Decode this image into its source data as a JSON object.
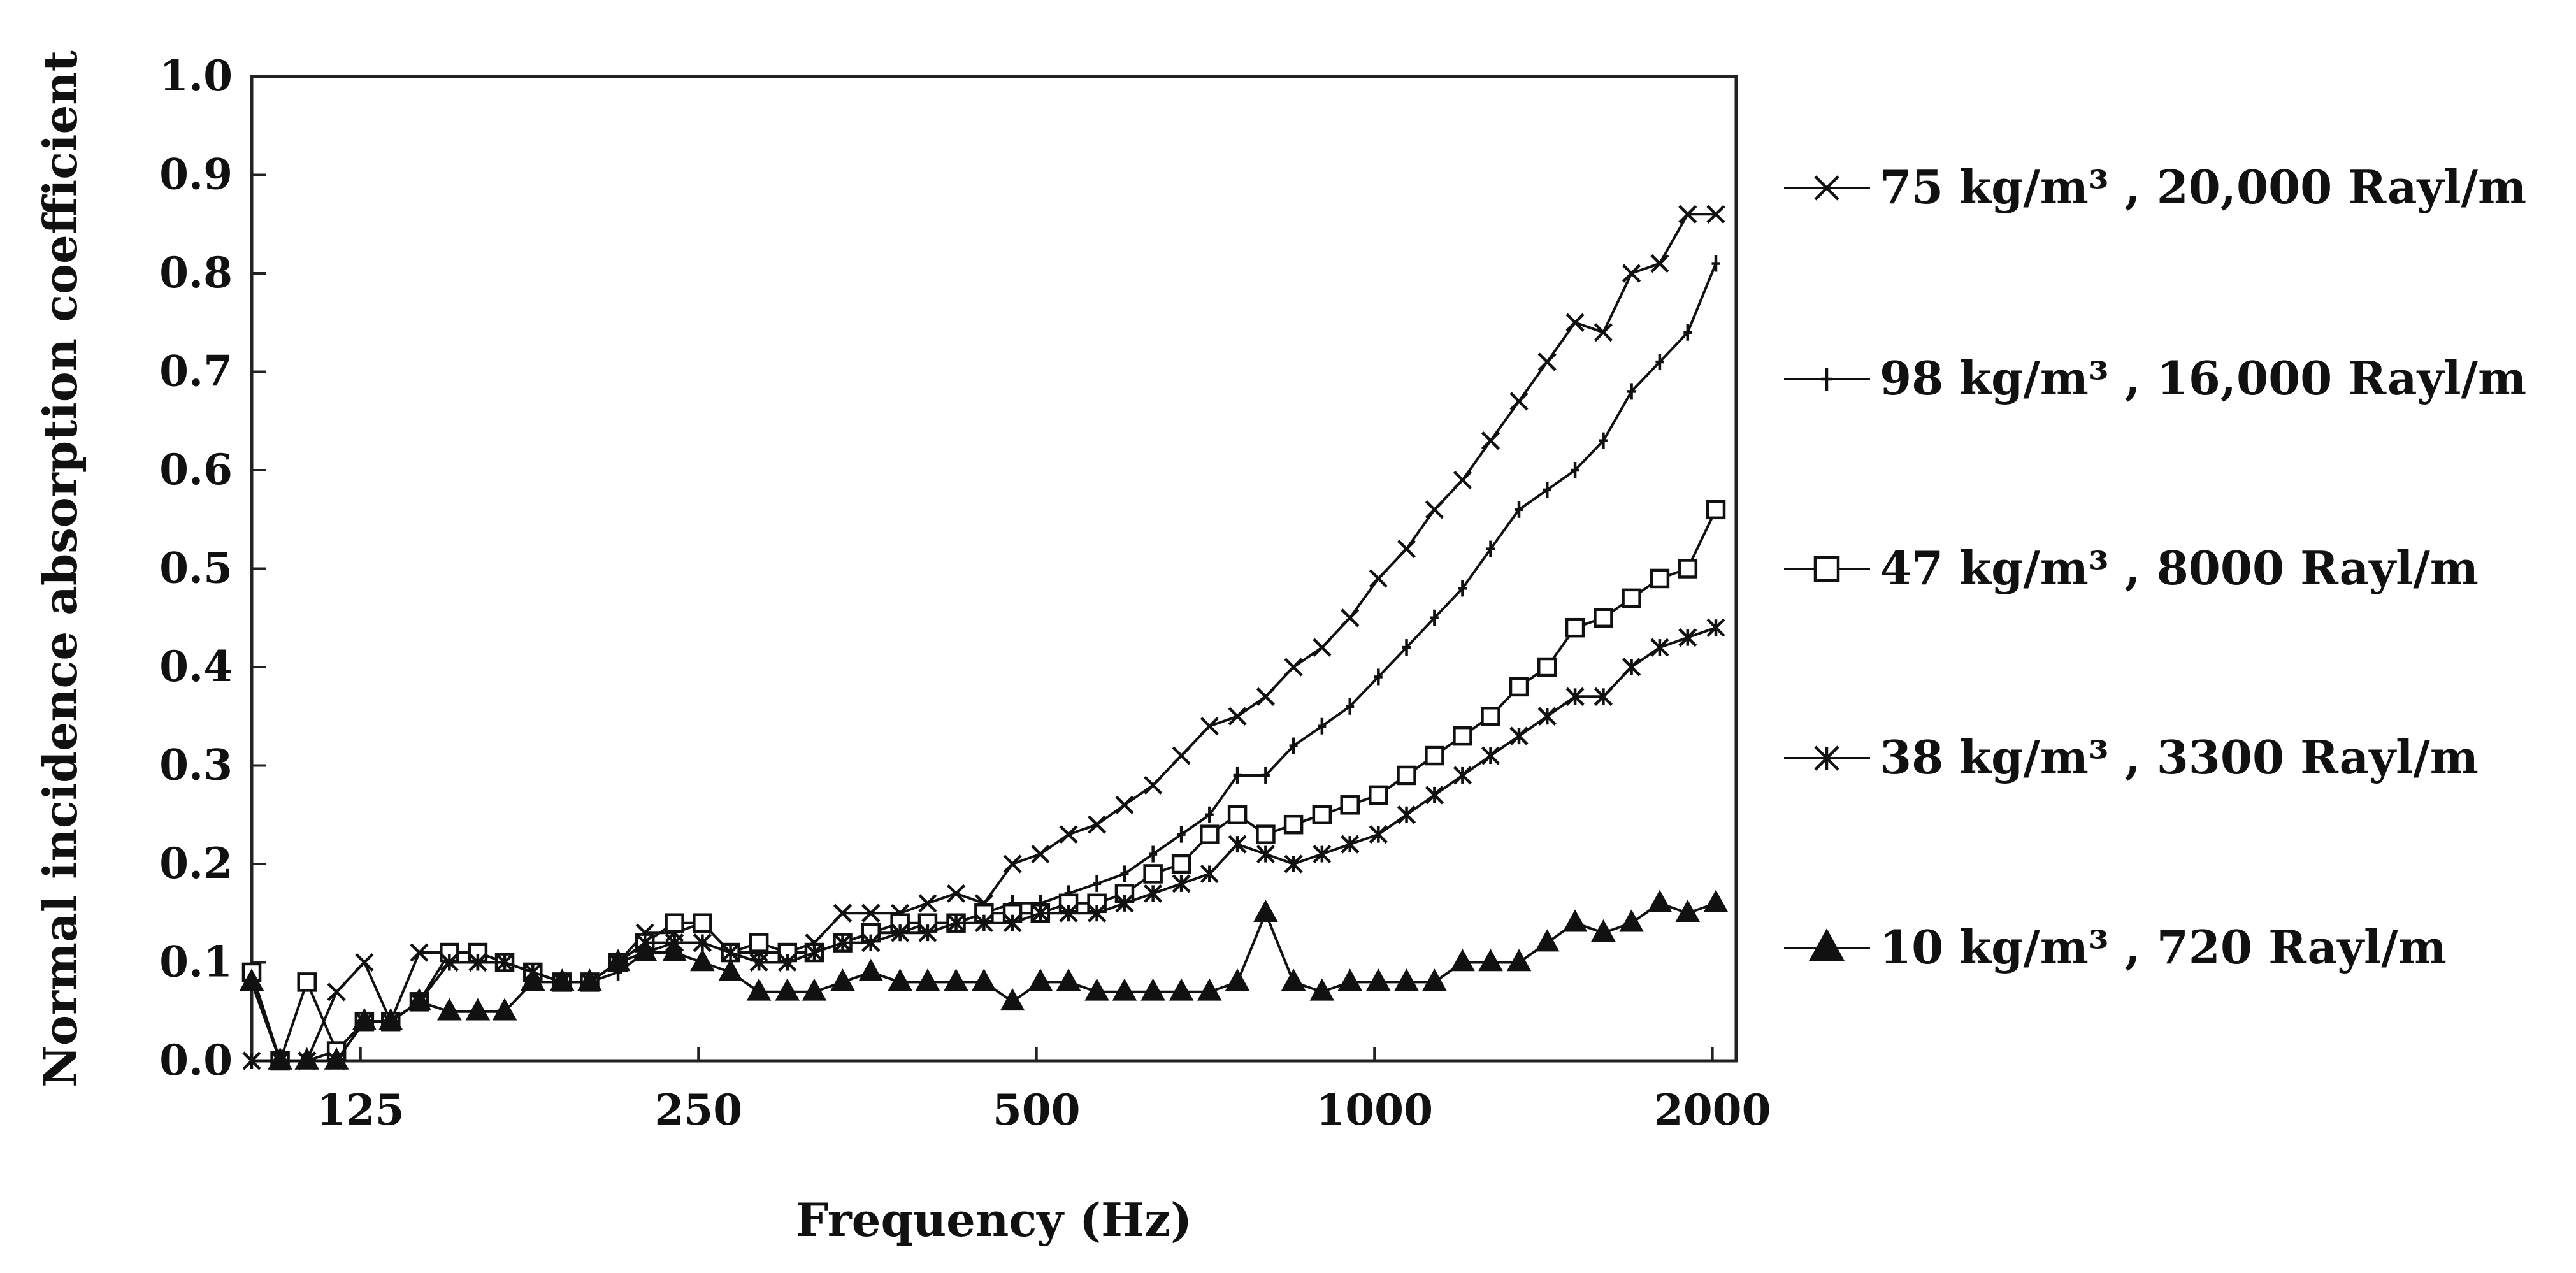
{
  "chart_data": {
    "type": "line",
    "title": "",
    "xlabel": "Frequency (Hz)",
    "ylabel": "Normal incidence absorption coefficient",
    "x_scale": "log",
    "xlim": [
      100,
      2100
    ],
    "ylim": [
      0,
      1.0
    ],
    "x_ticks": [
      125,
      250,
      500,
      1000,
      2000
    ],
    "y_ticks": [
      "0.0",
      "0.1",
      "0.2",
      "0.3",
      "0.4",
      "0.5",
      "0.6",
      "0.7",
      "0.8",
      "0.9",
      "1.0"
    ],
    "grid": false,
    "legend_position": "right",
    "x": [
      100,
      106,
      112,
      119,
      126,
      133,
      141,
      150,
      159,
      168,
      178,
      189,
      200,
      212,
      224,
      238,
      252,
      267,
      283,
      300,
      317,
      336,
      356,
      378,
      400,
      424,
      449,
      476,
      504,
      534,
      566,
      599,
      635,
      673,
      713,
      755,
      800,
      847,
      898,
      951,
      1008,
      1068,
      1131,
      1198,
      1269,
      1345,
      1425,
      1509,
      1599,
      1694,
      1795,
      1901,
      2014
    ],
    "series": [
      {
        "name": "75 kg/m³ , 20,000 Rayl/m",
        "marker": "x",
        "color": "#111111",
        "values": [
          0.08,
          0.0,
          0.0,
          0.07,
          0.1,
          0.04,
          0.11,
          0.11,
          0.11,
          0.1,
          0.09,
          0.08,
          0.08,
          0.1,
          0.13,
          0.13,
          0.14,
          0.11,
          0.11,
          0.11,
          0.12,
          0.15,
          0.15,
          0.15,
          0.16,
          0.17,
          0.16,
          0.2,
          0.21,
          0.23,
          0.24,
          0.26,
          0.28,
          0.31,
          0.34,
          0.35,
          0.37,
          0.4,
          0.42,
          0.45,
          0.49,
          0.52,
          0.56,
          0.59,
          0.63,
          0.67,
          0.71,
          0.75,
          0.74,
          0.8,
          0.81,
          0.86,
          0.86
        ]
      },
      {
        "name": "98 kg/m³ , 16,000 Rayl/m",
        "marker": "plus",
        "color": "#111111",
        "values": [
          0.08,
          0.0,
          0.0,
          0.01,
          0.04,
          0.04,
          0.06,
          0.1,
          0.1,
          0.1,
          0.09,
          0.08,
          0.08,
          0.09,
          0.11,
          0.12,
          0.12,
          0.11,
          0.1,
          0.1,
          0.11,
          0.12,
          0.13,
          0.13,
          0.14,
          0.14,
          0.15,
          0.16,
          0.16,
          0.17,
          0.18,
          0.19,
          0.21,
          0.23,
          0.25,
          0.29,
          0.29,
          0.32,
          0.34,
          0.36,
          0.39,
          0.42,
          0.45,
          0.48,
          0.52,
          0.56,
          0.58,
          0.6,
          0.63,
          0.68,
          0.71,
          0.74,
          0.81
        ]
      },
      {
        "name": "47 kg/m³ , 8000 Rayl/m",
        "marker": "square",
        "color": "#111111",
        "values": [
          0.09,
          0.0,
          0.08,
          0.01,
          0.04,
          0.04,
          0.06,
          0.11,
          0.11,
          0.1,
          0.09,
          0.08,
          0.08,
          0.1,
          0.12,
          0.14,
          0.14,
          0.11,
          0.12,
          0.11,
          0.11,
          0.12,
          0.13,
          0.14,
          0.14,
          0.14,
          0.15,
          0.15,
          0.15,
          0.16,
          0.16,
          0.17,
          0.19,
          0.2,
          0.23,
          0.25,
          0.23,
          0.24,
          0.25,
          0.26,
          0.27,
          0.29,
          0.31,
          0.33,
          0.35,
          0.38,
          0.4,
          0.44,
          0.45,
          0.47,
          0.49,
          0.5,
          0.56
        ]
      },
      {
        "name": "38 kg/m³ , 3300 Rayl/m",
        "marker": "asterisk",
        "color": "#111111",
        "values": [
          0.0,
          0.0,
          0.0,
          0.0,
          0.04,
          0.04,
          0.06,
          0.1,
          0.1,
          0.1,
          0.09,
          0.08,
          0.08,
          0.1,
          0.12,
          0.12,
          0.12,
          0.11,
          0.1,
          0.1,
          0.11,
          0.12,
          0.12,
          0.13,
          0.13,
          0.14,
          0.14,
          0.14,
          0.15,
          0.15,
          0.15,
          0.16,
          0.17,
          0.18,
          0.19,
          0.22,
          0.21,
          0.2,
          0.21,
          0.22,
          0.23,
          0.25,
          0.27,
          0.29,
          0.31,
          0.33,
          0.35,
          0.37,
          0.37,
          0.4,
          0.42,
          0.43,
          0.44
        ]
      },
      {
        "name": "10 kg/m³ , 720 Rayl/m",
        "marker": "triangle",
        "color": "#111111",
        "values": [
          0.08,
          0.0,
          0.0,
          0.0,
          0.04,
          0.04,
          0.06,
          0.05,
          0.05,
          0.05,
          0.08,
          0.08,
          0.08,
          0.1,
          0.11,
          0.11,
          0.1,
          0.09,
          0.07,
          0.07,
          0.07,
          0.08,
          0.09,
          0.08,
          0.08,
          0.08,
          0.08,
          0.06,
          0.08,
          0.08,
          0.07,
          0.07,
          0.07,
          0.07,
          0.07,
          0.08,
          0.15,
          0.08,
          0.07,
          0.08,
          0.08,
          0.08,
          0.08,
          0.1,
          0.1,
          0.1,
          0.12,
          0.14,
          0.13,
          0.14,
          0.16,
          0.15,
          0.16
        ]
      }
    ]
  }
}
